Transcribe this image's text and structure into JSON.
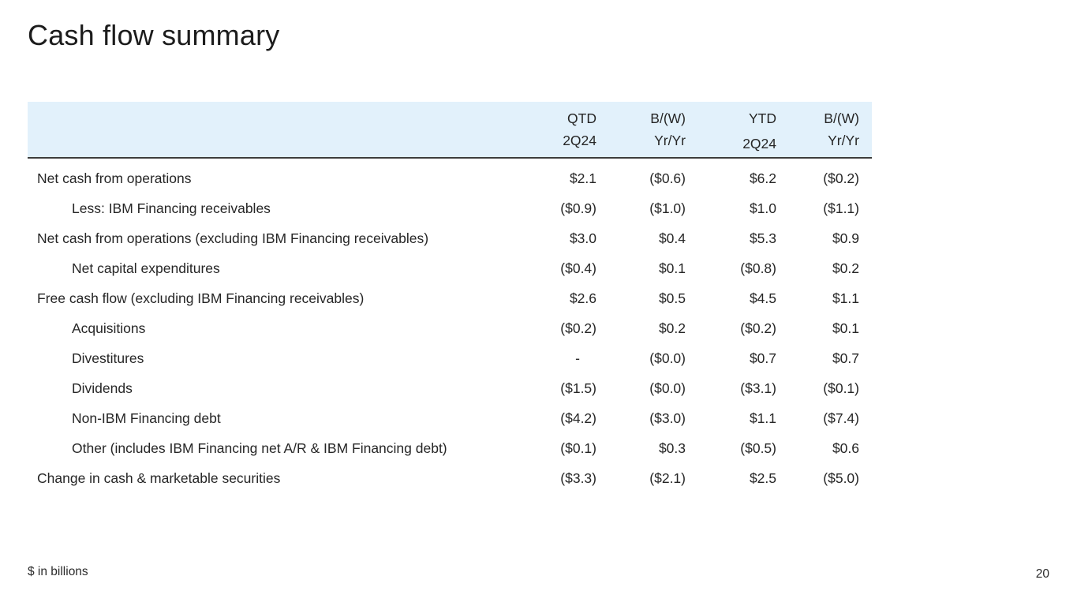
{
  "slide": {
    "title": "Cash flow summary",
    "footnote": "$ in billions",
    "page_number": "20"
  },
  "table": {
    "columns": [
      {
        "line1": "QTD",
        "line2": "2Q24"
      },
      {
        "line1": "B/(W)",
        "line2": "Yr/Yr"
      },
      {
        "line1": "YTD",
        "line2": "2Q24"
      },
      {
        "line1": "B/(W)",
        "line2": "Yr/Yr"
      }
    ],
    "rows": [
      {
        "label": "Net cash from operations",
        "indent": false,
        "values": [
          "$2.1",
          "($0.6)",
          "$6.2",
          "($0.2)"
        ]
      },
      {
        "label": "Less: IBM Financing receivables",
        "indent": true,
        "values": [
          "($0.9)",
          "($1.0)",
          "$1.0",
          "($1.1)"
        ]
      },
      {
        "label": "Net cash from operations (excluding IBM Financing receivables)",
        "indent": false,
        "values": [
          "$3.0",
          "$0.4",
          "$5.3",
          "$0.9"
        ]
      },
      {
        "label": "Net capital expenditures",
        "indent": true,
        "values": [
          "($0.4)",
          "$0.1",
          "($0.8)",
          "$0.2"
        ]
      },
      {
        "label": "Free cash flow (excluding IBM Financing receivables)",
        "indent": false,
        "values": [
          "$2.6",
          "$0.5",
          "$4.5",
          "$1.1"
        ]
      },
      {
        "label": "Acquisitions",
        "indent": true,
        "values": [
          "($0.2)",
          "$0.2",
          "($0.2)",
          "$0.1"
        ]
      },
      {
        "label": "Divestitures",
        "indent": true,
        "values": [
          "-",
          "($0.0)",
          "$0.7",
          "$0.7"
        ]
      },
      {
        "label": "Dividends",
        "indent": true,
        "values": [
          "($1.5)",
          "($0.0)",
          "($3.1)",
          "($0.1)"
        ]
      },
      {
        "label": "Non-IBM Financing debt",
        "indent": true,
        "values": [
          "($4.2)",
          "($3.0)",
          "$1.1",
          "($7.4)"
        ]
      },
      {
        "label": "Other (includes IBM Financing net A/R & IBM Financing debt)",
        "indent": true,
        "values": [
          "($0.1)",
          "$0.3",
          "($0.5)",
          "$0.6"
        ]
      },
      {
        "label": "Change in cash & marketable securities",
        "indent": false,
        "values": [
          "($3.3)",
          "($2.1)",
          "$2.5",
          "($5.0)"
        ]
      }
    ]
  },
  "colors": {
    "header_fill": "#e2f1fb",
    "header_border": "#3d3d3d",
    "text": "#262626"
  }
}
